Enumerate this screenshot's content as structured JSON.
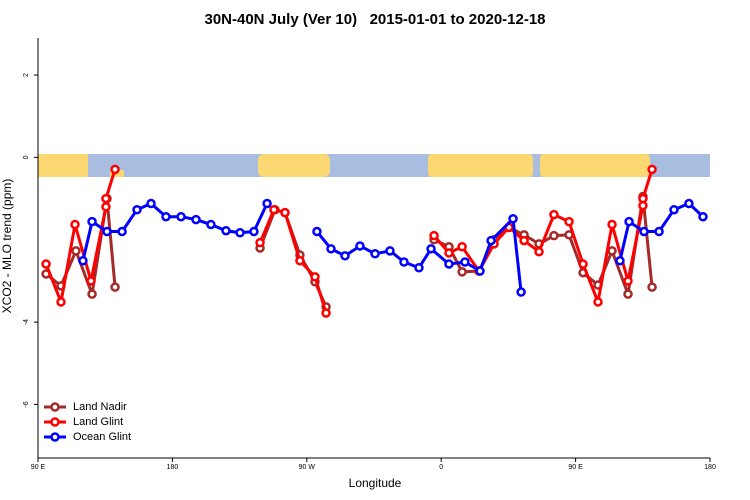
{
  "chart_data": {
    "type": "line",
    "title": "30N-40N July (Ver 10)   2015-01-01 to 2020-12-18",
    "x_label": "Longitude",
    "y_label": "XCO2 - MLO trend (ppm)",
    "xlim": [
      90,
      540
    ],
    "ylim": [
      -7.3,
      2.9
    ],
    "xticks": [
      {
        "value": 90,
        "label": "90 E"
      },
      {
        "value": 180,
        "label": "180"
      },
      {
        "value": 270,
        "label": "90 W"
      },
      {
        "value": 360,
        "label": "0"
      },
      {
        "value": 450,
        "label": "90 E"
      },
      {
        "value": 540,
        "label": "180"
      }
    ],
    "yticks": [
      -6,
      -4,
      0,
      2
    ],
    "legend": "bottom-left",
    "series": [
      {
        "name": "Land Nadir",
        "color": "#a52a2a",
        "x": [
          95.4,
          105.4,
          115.4,
          126.2,
          136.2,
          141.6,
          null,
          238.7,
          248.7,
          255.4,
          265.4,
          275.5,
          282.9,
          null,
          355.2,
          365.2,
          374.0,
          385.3,
          395.4,
          405.4,
          415.5,
          425.5,
          435.5,
          445.6,
          455.0,
          465.0,
          474.4,
          485.1,
          495.1,
          501.2
        ],
        "values": [
          -2.83,
          -3.12,
          -2.27,
          -3.32,
          -1.0,
          -3.15,
          null,
          -2.2,
          -1.27,
          -1.34,
          -2.37,
          -3.02,
          -3.63,
          null,
          -2.0,
          -2.17,
          -2.78,
          -2.76,
          -2.0,
          -1.7,
          -1.88,
          -2.1,
          -1.9,
          -1.88,
          -2.8,
          -3.1,
          -2.27,
          -3.32,
          -0.95,
          -3.15
        ]
      },
      {
        "name": "Land Glint",
        "color": "#ff0000",
        "x": [
          95.4,
          105.4,
          114.8,
          125.5,
          135.5,
          135.5,
          141.6,
          null,
          238.7,
          248.0,
          255.4,
          265.4,
          275.5,
          282.9,
          null,
          355.2,
          365.2,
          374.0,
          385.3,
          395.4,
          405.4,
          415.5,
          425.5,
          435.5,
          445.6,
          455.0,
          465.0,
          474.4,
          485.1,
          495.1,
          495.1,
          501.2
        ],
        "values": [
          -2.59,
          -3.51,
          -1.63,
          -3.0,
          -1.2,
          -1.0,
          -0.29,
          null,
          -2.07,
          -1.27,
          -1.34,
          -2.51,
          -2.9,
          -3.78,
          null,
          -1.9,
          -2.32,
          -2.17,
          -2.76,
          -2.1,
          -1.7,
          -2.02,
          -2.29,
          -1.39,
          -1.56,
          -2.59,
          -3.51,
          -1.63,
          -3.0,
          -1.17,
          -1.0,
          -0.29
        ]
      },
      {
        "name": "Ocean Glint",
        "color": "#0000ff",
        "x": [
          120.1,
          126.2,
          136.2,
          146.3,
          156.3,
          165.7,
          175.7,
          185.8,
          195.8,
          205.8,
          215.9,
          225.3,
          234.6,
          243.4,
          null,
          276.8,
          286.2,
          295.6,
          305.6,
          315.7,
          325.7,
          335.1,
          345.1,
          353.2,
          365.2,
          375.9,
          386.0,
          393.4,
          408.1,
          413.5,
          null,
          479.7,
          485.8,
          495.8,
          505.9,
          515.9,
          525.9,
          535.3
        ],
        "values": [
          -2.51,
          -1.56,
          -1.8,
          -1.8,
          -1.27,
          -1.12,
          -1.44,
          -1.44,
          -1.51,
          -1.63,
          -1.78,
          -1.83,
          -1.8,
          -1.12,
          null,
          -1.8,
          -2.22,
          -2.39,
          -2.15,
          -2.34,
          -2.27,
          -2.54,
          -2.68,
          -2.22,
          -2.59,
          -2.54,
          -2.76,
          -2.02,
          -1.49,
          -3.27,
          null,
          -2.51,
          -1.56,
          -1.8,
          -1.8,
          -1.27,
          -1.12,
          -1.44
        ]
      }
    ]
  }
}
